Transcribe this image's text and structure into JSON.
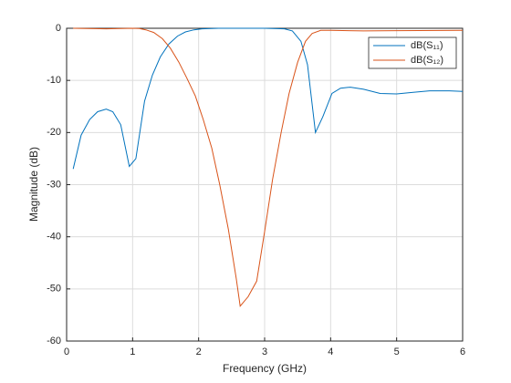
{
  "chart_data": {
    "type": "line",
    "xlabel": "Frequency (GHz)",
    "ylabel": "Magnitude (dB)",
    "xlim": [
      0,
      6
    ],
    "ylim": [
      -60,
      0
    ],
    "xticks": [
      0,
      1,
      2,
      3,
      4,
      5,
      6
    ],
    "yticks": [
      -60,
      -50,
      -40,
      -30,
      -20,
      -10,
      0
    ],
    "grid": true,
    "legend": "upper right",
    "series": [
      {
        "name": "dB(S₁₁)",
        "color": "#0072bd",
        "x": [
          0.1,
          0.22,
          0.35,
          0.47,
          0.6,
          0.7,
          0.82,
          0.95,
          1.05,
          1.18,
          1.3,
          1.42,
          1.55,
          1.68,
          1.8,
          1.93,
          2.05,
          2.3,
          2.6,
          3.0,
          3.3,
          3.42,
          3.55,
          3.65,
          3.77,
          3.88,
          4.02,
          4.15,
          4.3,
          4.5,
          4.75,
          5.0,
          5.25,
          5.5,
          5.8,
          6.0
        ],
        "values": [
          -27,
          -20.5,
          -17.5,
          -16,
          -15.5,
          -16,
          -18.5,
          -26.5,
          -25,
          -14,
          -9,
          -5.5,
          -3,
          -1.5,
          -0.7,
          -0.3,
          -0.1,
          0,
          0,
          0,
          -0.1,
          -0.5,
          -2.5,
          -7,
          -20,
          -17,
          -12.5,
          -11.5,
          -11.3,
          -11.7,
          -12.5,
          -12.6,
          -12.3,
          -12,
          -12,
          -12.1
        ]
      },
      {
        "name": "dB(S₁₂)",
        "color": "#d95319",
        "x": [
          0.1,
          0.6,
          1.0,
          1.1,
          1.2,
          1.32,
          1.45,
          1.57,
          1.7,
          1.82,
          1.95,
          2.07,
          2.2,
          2.32,
          2.45,
          2.57,
          2.63,
          2.75,
          2.88,
          3.0,
          3.12,
          3.25,
          3.37,
          3.5,
          3.62,
          3.72,
          3.85,
          4.0,
          4.5,
          5.0,
          6.0
        ],
        "values": [
          0,
          -0.1,
          0,
          -0.05,
          -0.3,
          -0.8,
          -2,
          -3.8,
          -6.5,
          -9.5,
          -13,
          -17.5,
          -23,
          -30,
          -38.5,
          -48,
          -53.3,
          -51.5,
          -48.5,
          -39,
          -29,
          -20,
          -12.5,
          -6.5,
          -2.5,
          -1,
          -0.4,
          -0.4,
          -0.5,
          -0.45,
          -0.4
        ]
      }
    ]
  }
}
